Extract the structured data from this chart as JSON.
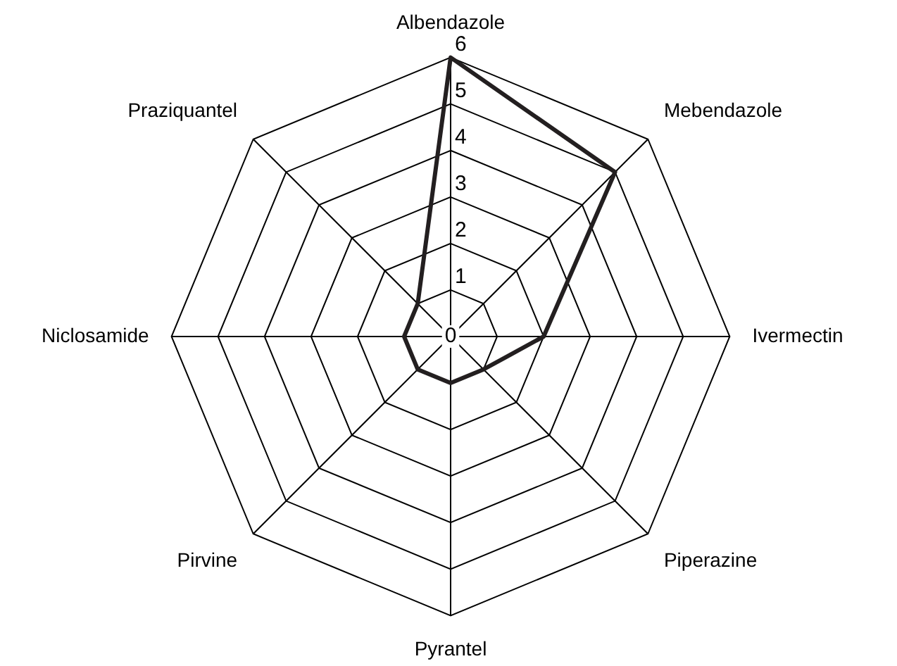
{
  "chart_data": {
    "type": "radar",
    "categories": [
      "Albendazole",
      "Mebendazole",
      "Ivermectin",
      "Piperazine",
      "Pyrantel",
      "Pirvine",
      "Niclosamide",
      "Praziquantel"
    ],
    "series": [
      {
        "color": "#231f20",
        "values": [
          6,
          5,
          2,
          1,
          1,
          1,
          1,
          1
        ]
      }
    ],
    "ylim": [
      0,
      6
    ],
    "yticks": [
      0,
      1,
      2,
      3,
      4,
      5,
      6
    ],
    "grid": true,
    "legend": false,
    "marker": "none",
    "line_style": "solid"
  }
}
